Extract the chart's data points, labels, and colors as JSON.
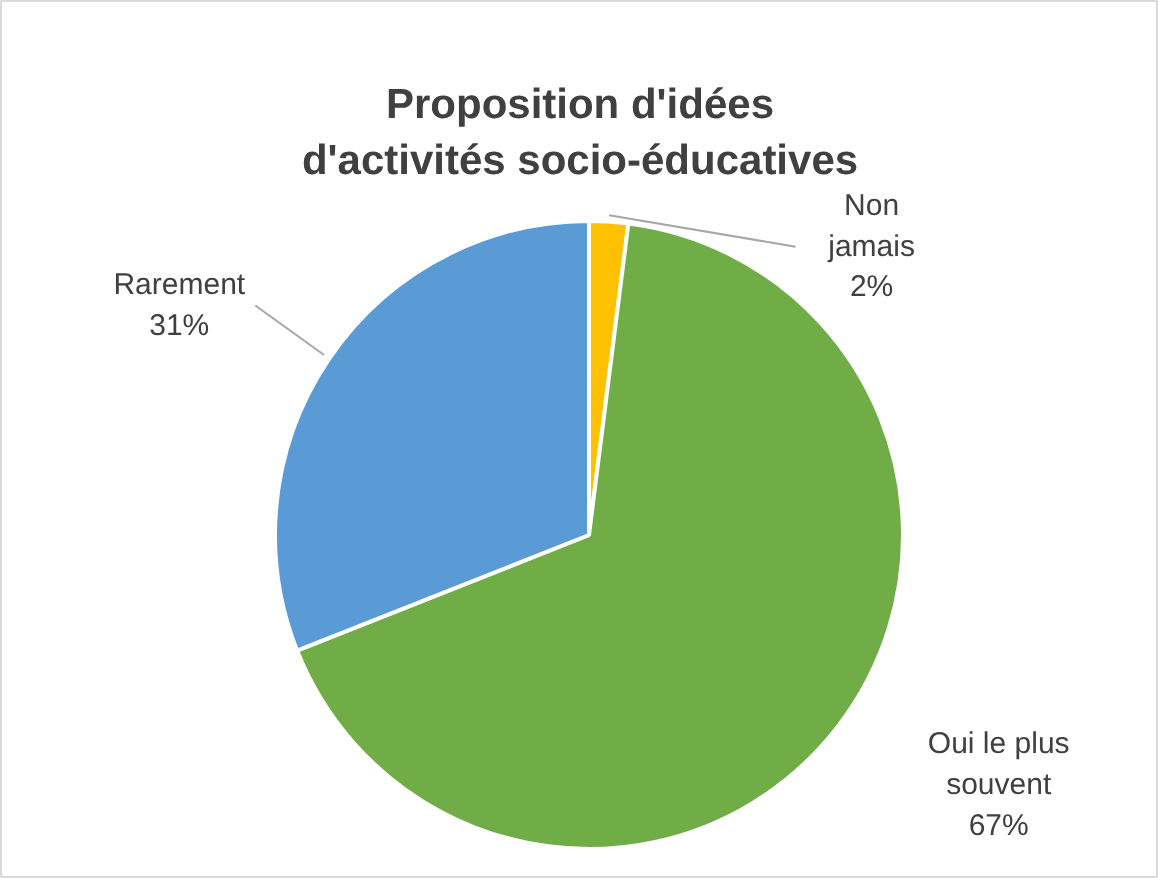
{
  "chart_data": {
    "type": "pie",
    "title": "Proposition d'idées\nd'activités socio-éducatives",
    "categories": [
      "Non jamais",
      "Oui le plus souvent",
      "Rarement"
    ],
    "values": [
      2,
      67,
      31
    ],
    "colors": [
      "#ffc000",
      "#70ad47",
      "#5b9bd5"
    ],
    "value_labels": [
      "2%",
      "67%",
      "31%"
    ],
    "legend": false
  }
}
